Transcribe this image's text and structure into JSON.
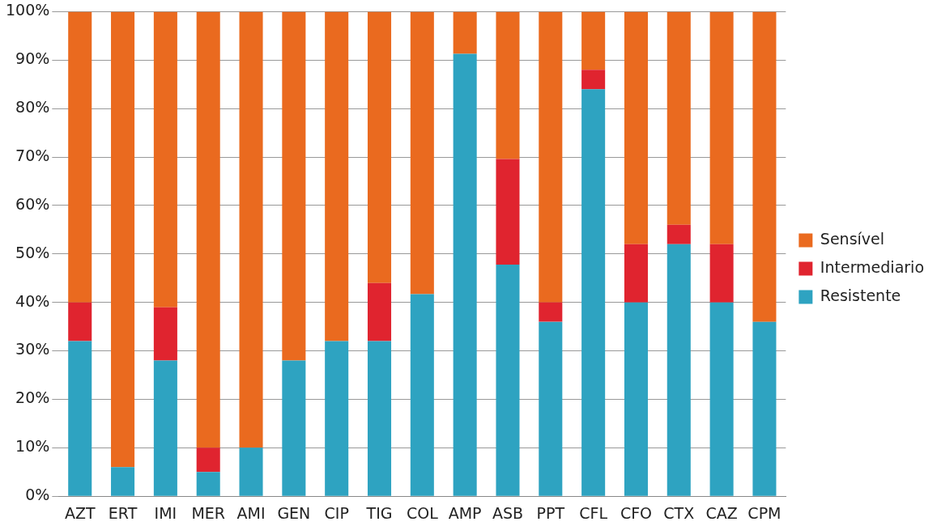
{
  "chart_data": {
    "type": "bar",
    "stacked": true,
    "categories": [
      "AZT",
      "ERT",
      "IMI",
      "MER",
      "AMI",
      "GEN",
      "CIP",
      "TIG",
      "COL",
      "AMP",
      "ASB",
      "PPT",
      "CFL",
      "CFO",
      "CTX",
      "CAZ",
      "CPM"
    ],
    "series": [
      {
        "name": "Resistente",
        "color": "#2ea3c1",
        "values": [
          32,
          6,
          28,
          5,
          10,
          28,
          32,
          32,
          41.7,
          91.3,
          47.8,
          36,
          84,
          40,
          52,
          40,
          36
        ]
      },
      {
        "name": "Intermediario",
        "color": "#e0242f",
        "values": [
          8,
          0,
          11,
          5,
          0,
          0,
          0,
          12,
          0,
          0,
          21.8,
          4,
          4,
          12,
          4,
          12,
          0
        ]
      },
      {
        "name": "Sensível",
        "color": "#ea6a1f",
        "values": [
          60,
          94,
          61,
          90,
          90,
          72,
          68,
          56,
          58.3,
          8.7,
          30.4,
          60,
          12,
          48,
          44,
          48,
          64
        ]
      }
    ],
    "ylim": [
      0,
      100
    ],
    "yticks": [
      {
        "value": 0,
        "label": "0%"
      },
      {
        "value": 10,
        "label": "10%"
      },
      {
        "value": 20,
        "label": "20%"
      },
      {
        "value": 30,
        "label": "30%"
      },
      {
        "value": 40,
        "label": "40%"
      },
      {
        "value": 50,
        "label": "50%"
      },
      {
        "value": 60,
        "label": "60%"
      },
      {
        "value": 70,
        "label": "70%"
      },
      {
        "value": 80,
        "label": "80%"
      },
      {
        "value": 90,
        "label": "90%"
      },
      {
        "value": 100,
        "label": "100%"
      }
    ],
    "grid": "y",
    "legend": "right"
  }
}
